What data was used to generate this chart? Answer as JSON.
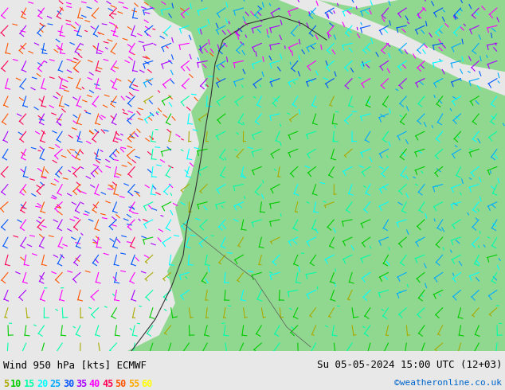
{
  "title_left": "Wind 950 hPa [kts] ECMWF",
  "title_right": "Su 05-05-2024 15:00 UTC (12+03)",
  "credit": "©weatheronline.co.uk",
  "legend_values": [
    5,
    10,
    15,
    20,
    25,
    30,
    35,
    40,
    45,
    50,
    55,
    60
  ],
  "legend_colors": [
    "#aaaa00",
    "#00cc00",
    "#00ffaa",
    "#00ffff",
    "#00aaff",
    "#0055ff",
    "#aa00ff",
    "#ff00ff",
    "#ff0055",
    "#ff5500",
    "#ffaa00",
    "#ffff00"
  ],
  "bg_color": "#e8e8e8",
  "map_bg": "#d0f0d0",
  "land_color": "#90d890",
  "sea_color": "#c8c8c8",
  "text_color": "#000000",
  "figsize": [
    6.34,
    4.9
  ],
  "dpi": 100
}
